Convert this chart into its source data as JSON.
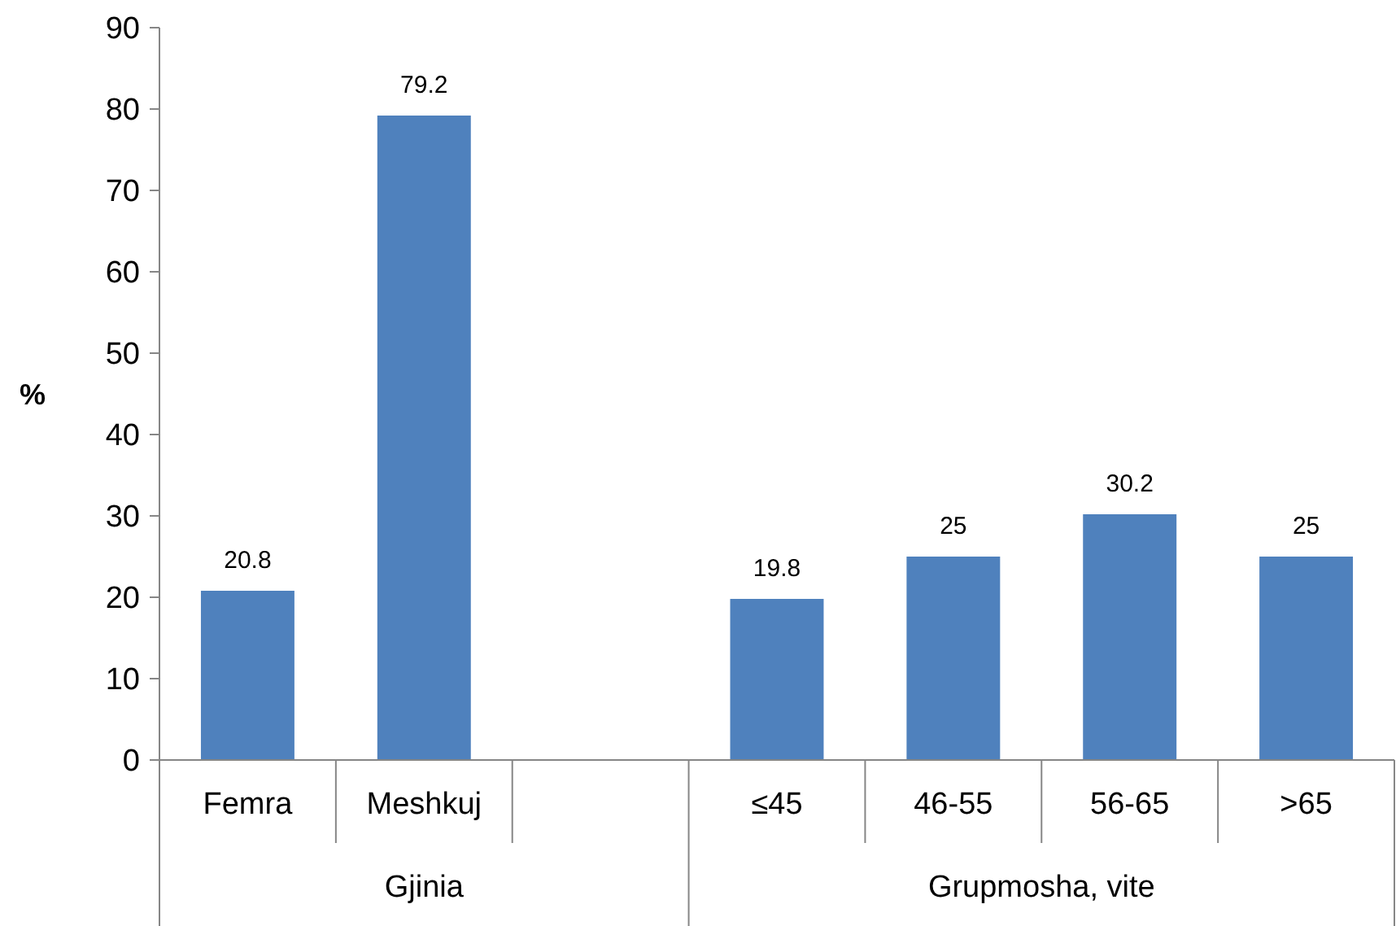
{
  "chart_data": {
    "type": "bar",
    "ylabel": "%",
    "categories": [
      "Femra",
      "Meshkuj",
      null,
      "≤45",
      "46-55",
      "56-65",
      ">65"
    ],
    "values": [
      20.8,
      79.2,
      null,
      19.8,
      25,
      30.2,
      25
    ],
    "color": "#4f81bd",
    "ylim": [
      0,
      90
    ],
    "yticks": [
      0,
      10,
      20,
      30,
      40,
      50,
      60,
      70,
      80,
      90
    ],
    "data_labels": true,
    "grid": false,
    "annotations": [
      "Gjinia",
      "Grupmosha, vite"
    ]
  }
}
